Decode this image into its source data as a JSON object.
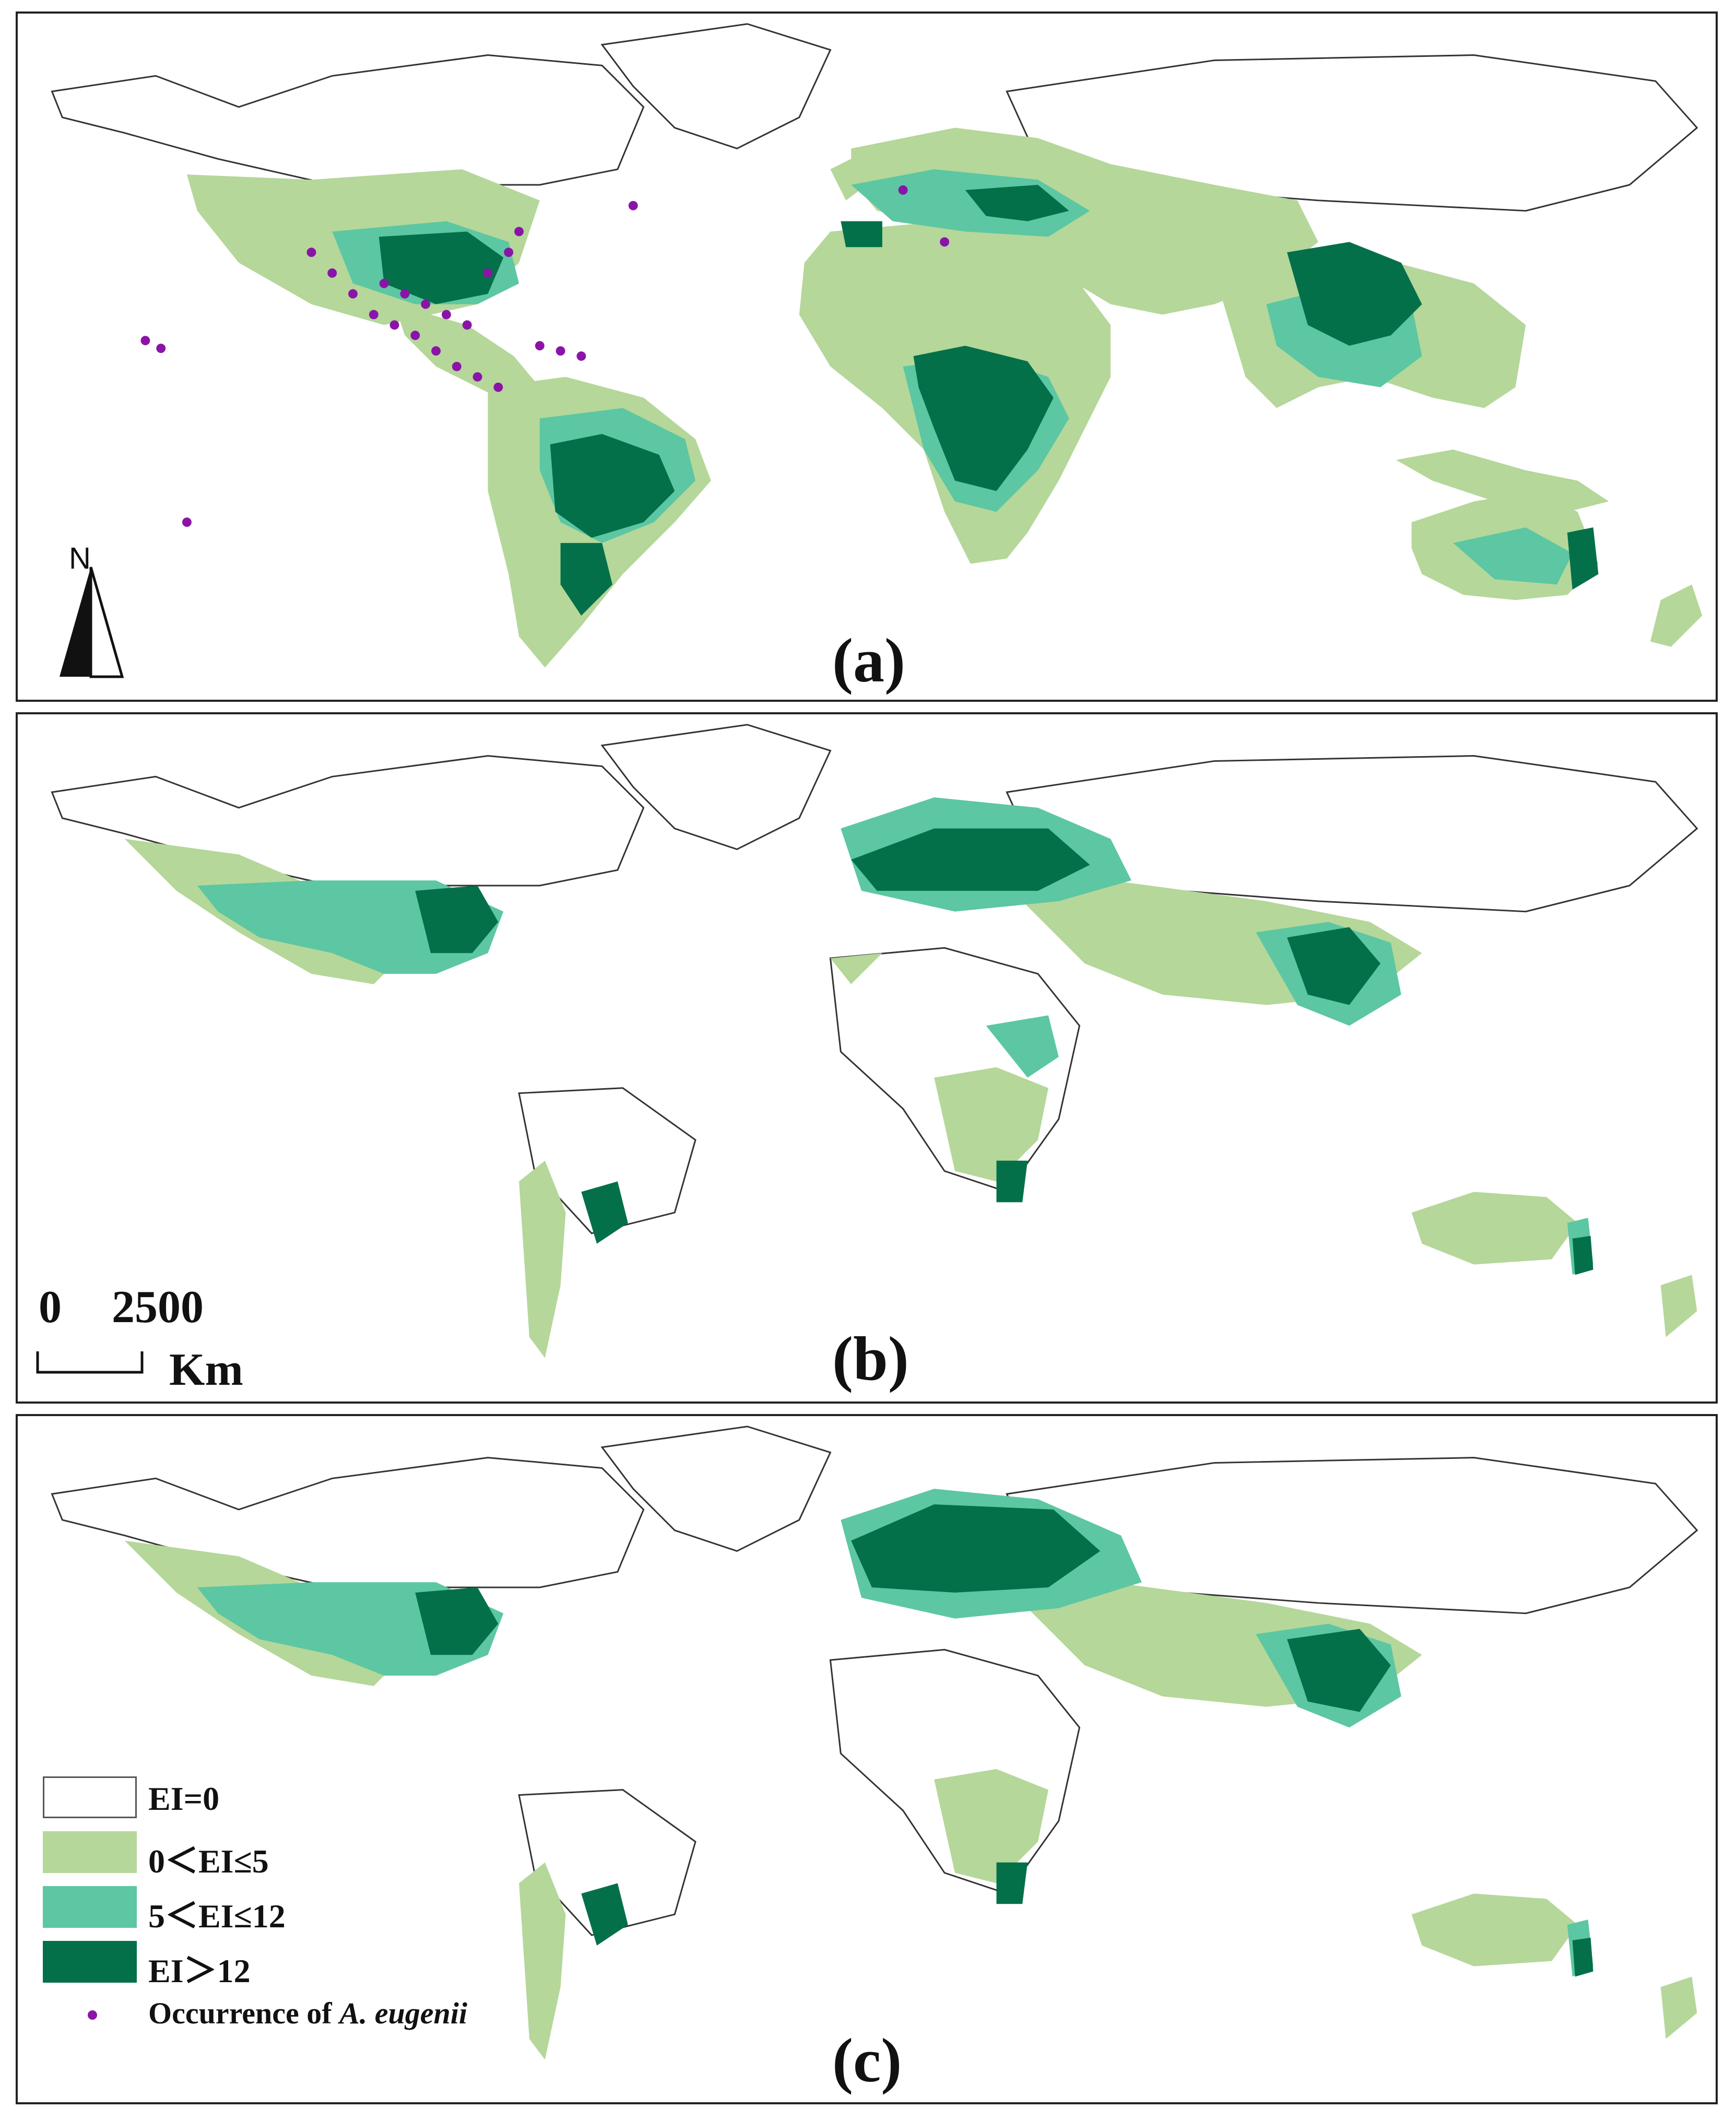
{
  "colors": {
    "ei0": "#ffffff",
    "ei_low": "#b5d79a",
    "ei_mid": "#5cc7a2",
    "ei_high": "#047049",
    "occurrence": "#8b14a8",
    "outline": "#333333"
  },
  "panels": [
    {
      "id": "a",
      "label": "(a)"
    },
    {
      "id": "b",
      "label": "(b)"
    },
    {
      "id": "c",
      "label": "(c)"
    }
  ],
  "north_arrow": {
    "label": "N"
  },
  "scale_bar": {
    "start": "0",
    "end": "2500",
    "unit": "Km"
  },
  "legend": {
    "items": [
      {
        "label": "EI=0",
        "color_key": "ei0"
      },
      {
        "label": "0＜EI≤5",
        "color_key": "ei_low"
      },
      {
        "label": "5＜EI≤12",
        "color_key": "ei_mid"
      },
      {
        "label": "EI＞12",
        "color_key": "ei_high"
      }
    ],
    "occurrence_prefix": "Occurrence of ",
    "occurrence_species": "A. eugenii"
  }
}
